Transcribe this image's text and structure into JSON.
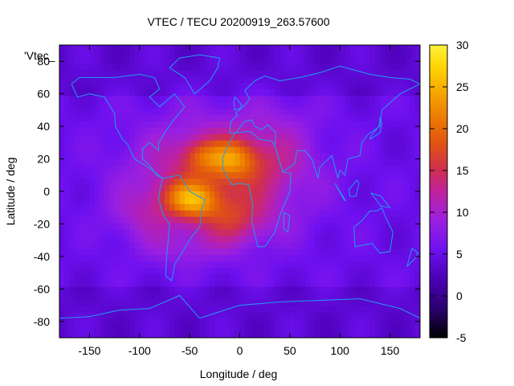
{
  "chart_data": {
    "type": "heatmap",
    "title": "VTEC / TECU 20200919_263.57600",
    "xlabel": "Longitude / deg",
    "ylabel": "Latitude / deg",
    "xlim": [
      -180,
      180
    ],
    "ylim": [
      -90,
      90
    ],
    "x_ticks": [
      -150,
      -100,
      -50,
      0,
      50,
      100,
      150
    ],
    "y_ticks": [
      -80,
      -60,
      -40,
      -20,
      0,
      20,
      40,
      60,
      80
    ],
    "colorbar": {
      "range": [
        -5,
        30
      ],
      "ticks": [
        -5,
        0,
        5,
        10,
        15,
        20,
        25,
        30
      ],
      "palette": [
        "#000000",
        "#2a006e",
        "#5a00d6",
        "#9a1ae6",
        "#c8208c",
        "#d83c1e",
        "#ea6e00",
        "#f8b300",
        "#ffe800",
        "#ffff60"
      ]
    },
    "legend": "'Vtec_",
    "background_level_tecu": 5,
    "anomaly": {
      "center_lon_deg": -25,
      "center_lat_deg": 5,
      "peak_tecu": 27,
      "note": "equatorial ionization crests over South America / Atlantic / Africa"
    },
    "overlay": "coastlines",
    "colors": {
      "coastline": "#1e9cf0",
      "frame": "#000000"
    }
  }
}
